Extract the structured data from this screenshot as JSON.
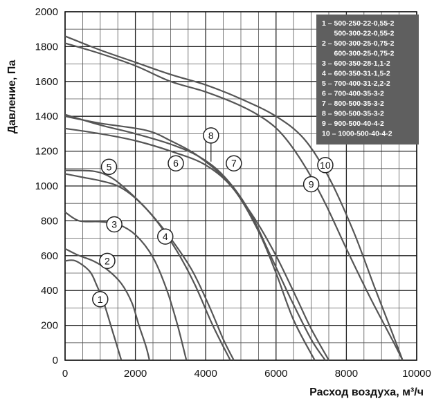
{
  "chart_data": {
    "type": "line",
    "title": "",
    "xlabel": "Расход воздуха, м³/ч",
    "ylabel": "Давление, Па",
    "xlim": [
      0,
      10000
    ],
    "ylim": [
      0,
      2000
    ],
    "x_ticks": [
      0,
      2000,
      4000,
      6000,
      8000,
      10000
    ],
    "y_ticks": [
      0,
      200,
      400,
      600,
      800,
      1000,
      1200,
      1400,
      1600,
      1800,
      2000
    ],
    "x_minor_step": 500,
    "y_minor_step": 100,
    "grid": true,
    "legend_position": "top-right",
    "legend": [
      "1 – 500-250-22-0,55-2",
      "      500-300-22-0,55-2",
      "2 – 500-300-25-0,75-2",
      "      600-300-25-0,75-2",
      "3 – 600-350-28-1,1-2",
      "4 – 600-350-31-1,5-2",
      "5 – 700-400-31-2,2-2",
      "6 – 700-400-35-3-2",
      "7 – 800-500-35-3-2",
      "8 – 900-500-35-3-2",
      "9 – 900-500-40-4-2",
      "10 – 1000-500-40-4-2"
    ],
    "series": [
      {
        "name": "1",
        "label_at": [
          1000,
          350
        ],
        "points": [
          [
            0,
            570
          ],
          [
            300,
            570
          ],
          [
            700,
            510
          ],
          [
            900,
            430
          ],
          [
            1100,
            330
          ],
          [
            1300,
            200
          ],
          [
            1450,
            100
          ],
          [
            1600,
            0
          ]
        ]
      },
      {
        "name": "2",
        "label_at": [
          1200,
          570
        ],
        "points": [
          [
            0,
            640
          ],
          [
            400,
            600
          ],
          [
            800,
            570
          ],
          [
            1200,
            520
          ],
          [
            1600,
            440
          ],
          [
            1900,
            330
          ],
          [
            2100,
            200
          ],
          [
            2300,
            80
          ],
          [
            2400,
            0
          ]
        ]
      },
      {
        "name": "3",
        "label_at": [
          1400,
          780
        ],
        "points": [
          [
            0,
            850
          ],
          [
            400,
            800
          ],
          [
            1000,
            795
          ],
          [
            1500,
            780
          ],
          [
            2000,
            720
          ],
          [
            2500,
            590
          ],
          [
            2900,
            400
          ],
          [
            3200,
            200
          ],
          [
            3450,
            0
          ]
        ]
      },
      {
        "name": "4",
        "label_at": [
          2850,
          710
        ],
        "points": [
          [
            0,
            1070
          ],
          [
            500,
            1050
          ],
          [
            1000,
            1030
          ],
          [
            1500,
            1000
          ],
          [
            2000,
            930
          ],
          [
            2600,
            800
          ],
          [
            3200,
            620
          ],
          [
            3700,
            430
          ],
          [
            4200,
            200
          ],
          [
            4700,
            0
          ]
        ]
      },
      {
        "name": "5",
        "label_at": [
          1250,
          1110
        ],
        "points": [
          [
            0,
            1090
          ],
          [
            800,
            1085
          ],
          [
            1300,
            1050
          ],
          [
            1800,
            970
          ],
          [
            2400,
            850
          ],
          [
            3000,
            700
          ],
          [
            3600,
            520
          ],
          [
            4100,
            310
          ],
          [
            4500,
            120
          ],
          [
            4800,
            0
          ]
        ]
      },
      {
        "name": "6",
        "label_at": [
          3150,
          1130
        ],
        "points": [
          [
            0,
            1330
          ],
          [
            1000,
            1300
          ],
          [
            2000,
            1260
          ],
          [
            3000,
            1200
          ],
          [
            4000,
            1120
          ],
          [
            4800,
            980
          ],
          [
            5500,
            740
          ],
          [
            6000,
            500
          ],
          [
            6500,
            230
          ],
          [
            7100,
            0
          ]
        ]
      },
      {
        "name": "7",
        "label_at": [
          4800,
          1130
        ],
        "points": [
          [
            0,
            1410
          ],
          [
            1000,
            1350
          ],
          [
            2000,
            1300
          ],
          [
            3000,
            1240
          ],
          [
            3800,
            1170
          ],
          [
            4500,
            1060
          ],
          [
            5200,
            870
          ],
          [
            5800,
            620
          ],
          [
            6400,
            360
          ],
          [
            7000,
            120
          ],
          [
            7400,
            0
          ]
        ]
      },
      {
        "name": "8",
        "label_at": [
          4150,
          1290
        ],
        "points": [
          [
            0,
            1400
          ],
          [
            1000,
            1360
          ],
          [
            2300,
            1320
          ],
          [
            3000,
            1260
          ],
          [
            3800,
            1170
          ],
          [
            4600,
            1030
          ],
          [
            5400,
            810
          ],
          [
            6000,
            600
          ],
          [
            6600,
            350
          ],
          [
            7000,
            180
          ],
          [
            7500,
            0
          ]
        ]
      },
      {
        "name": "9",
        "label_at": [
          7000,
          1010
        ],
        "points": [
          [
            0,
            1820
          ],
          [
            1000,
            1760
          ],
          [
            2000,
            1690
          ],
          [
            3000,
            1600
          ],
          [
            4000,
            1540
          ],
          [
            5000,
            1460
          ],
          [
            5700,
            1380
          ],
          [
            6200,
            1290
          ],
          [
            6800,
            1120
          ],
          [
            7400,
            900
          ],
          [
            8000,
            640
          ],
          [
            8700,
            350
          ],
          [
            9300,
            120
          ],
          [
            9600,
            0
          ]
        ]
      },
      {
        "name": "10",
        "label_at": [
          7400,
          1120
        ],
        "points": [
          [
            0,
            1860
          ],
          [
            1000,
            1780
          ],
          [
            2000,
            1710
          ],
          [
            3000,
            1640
          ],
          [
            4000,
            1580
          ],
          [
            5000,
            1500
          ],
          [
            6000,
            1400
          ],
          [
            6800,
            1270
          ],
          [
            7500,
            1050
          ],
          [
            8200,
            740
          ],
          [
            8800,
            420
          ],
          [
            9300,
            160
          ],
          [
            9600,
            0
          ]
        ]
      }
    ]
  }
}
